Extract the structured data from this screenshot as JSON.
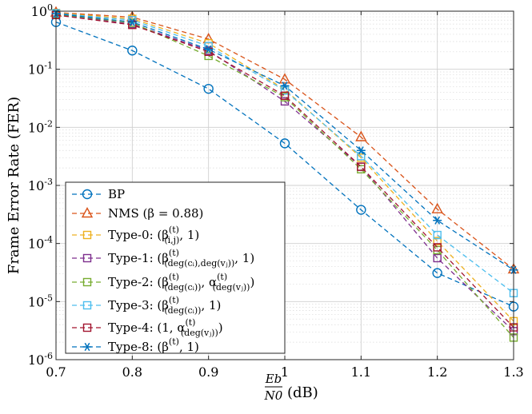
{
  "chart_data": {
    "type": "line",
    "title": "",
    "xlabel": "(dB)",
    "xlabel_fraction": {
      "num": "E_b",
      "den": "N_0"
    },
    "ylabel": "Frame Error Rate (FER)",
    "xscale": "linear",
    "yscale": "log",
    "xlim": [
      0.7,
      1.3
    ],
    "ylim": [
      1e-06,
      1
    ],
    "grid": true,
    "legend_position": "bottom-left",
    "x": [
      0.7,
      0.8,
      0.9,
      1.0,
      1.1,
      1.2,
      1.3
    ],
    "x_tick_labels": [
      "0.7",
      "0.8",
      "0.9",
      "1",
      "1.1",
      "1.2",
      "1.3"
    ],
    "y_tick_labels": [
      {
        "base": "10",
        "exp": "-6"
      },
      {
        "base": "10",
        "exp": "-5"
      },
      {
        "base": "10",
        "exp": "-4"
      },
      {
        "base": "10",
        "exp": "-3"
      },
      {
        "base": "10",
        "exp": "-2"
      },
      {
        "base": "10",
        "exp": "-1"
      },
      {
        "base": "10",
        "exp": "0"
      }
    ],
    "series": [
      {
        "name": "BP",
        "legend": {
          "pre": "BP"
        },
        "marker": "circle",
        "color": "#0072BD",
        "values": [
          0.65,
          0.21,
          0.046,
          0.0053,
          0.00038,
          3.1e-05,
          8.2e-06
        ]
      },
      {
        "name": "NMS (β = 0.88)",
        "legend": {
          "pre": "NMS (β = 0.88)"
        },
        "marker": "triangle",
        "color": "#D95319",
        "values": [
          0.95,
          0.79,
          0.33,
          0.067,
          0.0068,
          0.00039,
          3.6e-05
        ]
      },
      {
        "name": "Type-0",
        "legend": {
          "pre": "Type-0:  (β",
          "sup": "(t)",
          "sub": "(i,j)",
          "post": ", 1)"
        },
        "marker": "square",
        "color": "#EDB120",
        "values": [
          0.93,
          0.74,
          0.28,
          0.045,
          0.003,
          0.00011,
          4.6e-06
        ]
      },
      {
        "name": "Type-1",
        "legend": {
          "pre": "Type-1:  (β",
          "sup": "(t)",
          "sub": "(deg(cᵢ),deg(vⱼ))",
          "post": ", 1)"
        },
        "marker": "square",
        "color": "#7E2F8E",
        "values": [
          0.88,
          0.6,
          0.21,
          0.028,
          0.0021,
          5.6e-05,
          3.1e-06
        ]
      },
      {
        "name": "Type-2",
        "legend": {
          "pre": "Type-2:  (β",
          "sup": "(t)",
          "sub": "(deg(cᵢ))",
          "post": ", α",
          "sup2": "(t)",
          "sub2": "(deg(vⱼ))",
          "post2": ")"
        },
        "marker": "square",
        "color": "#77AC30",
        "values": [
          0.89,
          0.63,
          0.17,
          0.033,
          0.0019,
          7.7e-05,
          2.4e-06
        ]
      },
      {
        "name": "Type-3",
        "legend": {
          "pre": "Type-3:  (β",
          "sup": "(t)",
          "sub": "(deg(cᵢ))",
          "post": ", 1)"
        },
        "marker": "square",
        "color": "#4DBEEE",
        "values": [
          0.92,
          0.7,
          0.25,
          0.043,
          0.0032,
          0.00014,
          1.4e-05
        ]
      },
      {
        "name": "Type-4",
        "legend": {
          "pre": "Type-4:  (1, α",
          "sup": "(t)",
          "sub": "(deg(vⱼ))",
          "post": ")"
        },
        "marker": "square",
        "color": "#A2142F",
        "values": [
          0.86,
          0.58,
          0.2,
          0.035,
          0.0021,
          8.6e-05,
          3.6e-06
        ]
      },
      {
        "name": "Type-8",
        "legend": {
          "pre": "Type-8:  (β",
          "sup": "(t)",
          "post": ", 1)"
        },
        "marker": "asterisk",
        "color": "#0072BD",
        "values": [
          0.91,
          0.65,
          0.22,
          0.052,
          0.004,
          0.00025,
          3.5e-05
        ]
      }
    ]
  }
}
